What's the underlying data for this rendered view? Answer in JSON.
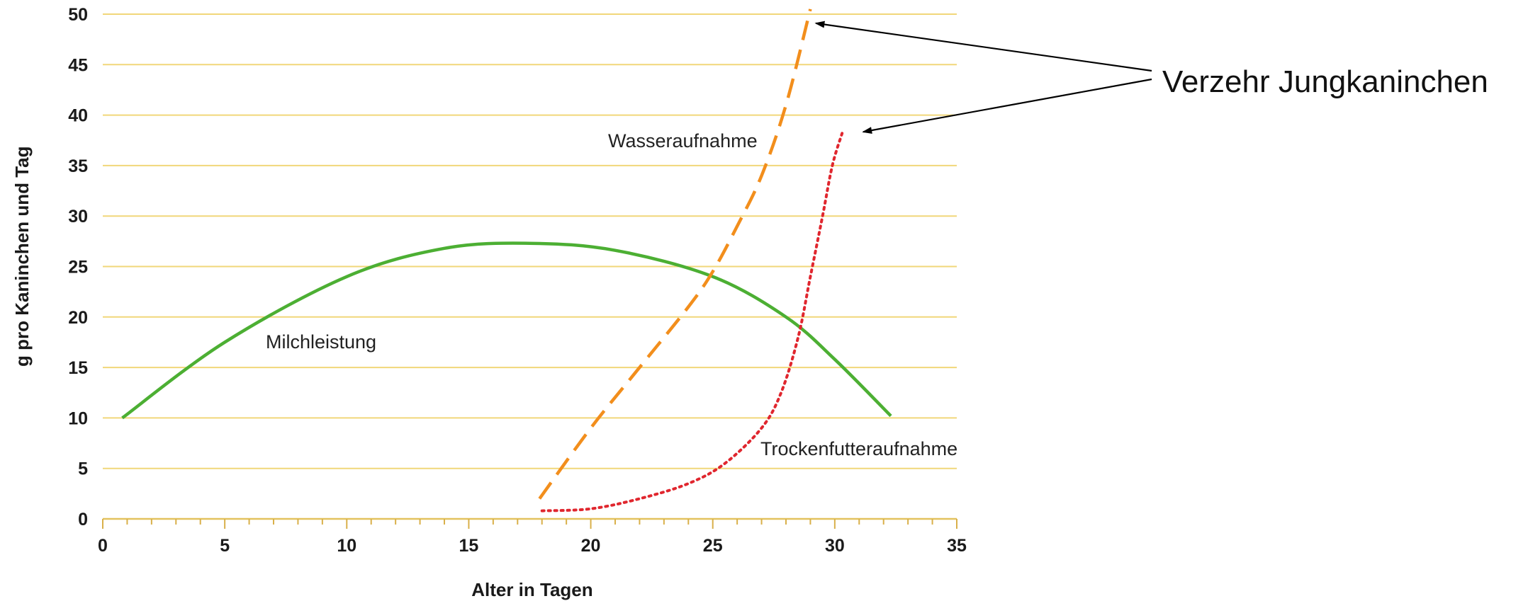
{
  "chart_data": {
    "type": "line",
    "xlabel": "Alter in Tagen",
    "ylabel": "g pro Kaninchen und Tag",
    "xlim": [
      0,
      35
    ],
    "ylim": [
      0,
      50
    ],
    "xticks": [
      0,
      5,
      10,
      15,
      20,
      25,
      30,
      35
    ],
    "yticks": [
      0,
      5,
      10,
      15,
      20,
      25,
      30,
      35,
      40,
      45,
      50
    ],
    "grid": "horizontal",
    "series": [
      {
        "name": "Milchleistung",
        "color": "#4caf33",
        "style": "solid",
        "points": [
          [
            0.8,
            10
          ],
          [
            5,
            17.5
          ],
          [
            10,
            24
          ],
          [
            14,
            26.8
          ],
          [
            17.5,
            27.3
          ],
          [
            21,
            26.6
          ],
          [
            25,
            24
          ],
          [
            28,
            20
          ],
          [
            30,
            15.8
          ],
          [
            32.3,
            10.2
          ]
        ]
      },
      {
        "name": "Wasseraufnahme",
        "color": "#f28e1c",
        "style": "dashed",
        "points": [
          [
            17.9,
            2
          ],
          [
            20,
            9
          ],
          [
            22,
            15
          ],
          [
            24,
            21
          ],
          [
            25,
            24.5
          ],
          [
            26,
            29
          ],
          [
            27,
            34
          ],
          [
            28,
            41
          ],
          [
            29,
            50.5
          ]
        ]
      },
      {
        "name": "Trockenfutteraufnahme",
        "color": "#e0262e",
        "style": "dotted",
        "points": [
          [
            18,
            0.8
          ],
          [
            20,
            1
          ],
          [
            22,
            2
          ],
          [
            24,
            3.5
          ],
          [
            25.5,
            5.5
          ],
          [
            27,
            9
          ],
          [
            27.8,
            12.5
          ],
          [
            28.5,
            18
          ],
          [
            29,
            24
          ],
          [
            29.5,
            30
          ],
          [
            29.9,
            35
          ],
          [
            30.3,
            38.2
          ]
        ]
      }
    ],
    "callout": {
      "text": "Verzehr Jungkaninchen",
      "targets": [
        "Wasseraufnahme",
        "Trockenfutteraufnahme"
      ]
    }
  }
}
